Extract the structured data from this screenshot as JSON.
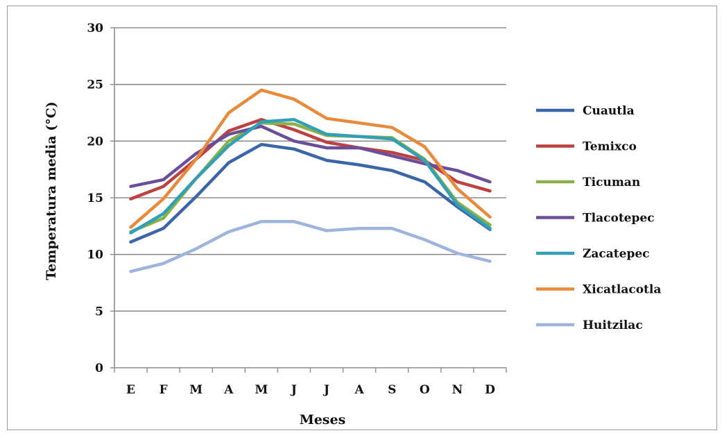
{
  "chart_data": {
    "type": "line",
    "title": "",
    "xlabel": "Meses",
    "ylabel": "Temperatura media (°C)",
    "categories": [
      "E",
      "F",
      "M",
      "A",
      "M",
      "J",
      "J",
      "A",
      "S",
      "O",
      "N",
      "D"
    ],
    "ylim": [
      0,
      30
    ],
    "yticks": [
      0,
      5,
      10,
      15,
      20,
      25,
      30
    ],
    "grid": true,
    "legend": "right",
    "series": [
      {
        "name": "Cuautla",
        "color": "#3a66a8",
        "values": [
          11.1,
          12.3,
          15.1,
          18.1,
          19.7,
          19.3,
          18.3,
          17.9,
          17.4,
          16.4,
          14.2,
          12.2
        ]
      },
      {
        "name": "Temixco",
        "color": "#bf4040",
        "values": [
          14.9,
          16.0,
          18.4,
          20.9,
          21.9,
          21.0,
          19.9,
          19.4,
          19.0,
          18.3,
          16.4,
          15.6
        ]
      },
      {
        "name": "Ticuman",
        "color": "#8bb04a",
        "values": [
          12.0,
          13.2,
          16.7,
          20.0,
          21.6,
          21.5,
          20.5,
          20.4,
          20.3,
          18.4,
          14.6,
          12.6
        ]
      },
      {
        "name": "Tlacotepec",
        "color": "#6b4e9a",
        "values": [
          16.0,
          16.6,
          18.9,
          20.6,
          21.3,
          20.0,
          19.4,
          19.4,
          18.7,
          18.0,
          17.4,
          16.4
        ]
      },
      {
        "name": "Zacatepec",
        "color": "#31a0b4",
        "values": [
          11.9,
          13.6,
          16.7,
          19.6,
          21.7,
          21.9,
          20.6,
          20.4,
          20.2,
          18.3,
          14.4,
          12.3
        ]
      },
      {
        "name": "Xicatlacotla",
        "color": "#e88a3c",
        "values": [
          12.4,
          14.9,
          18.4,
          22.5,
          24.5,
          23.7,
          22.0,
          21.6,
          21.2,
          19.5,
          15.8,
          13.3
        ]
      },
      {
        "name": "Huitzilac",
        "color": "#9eb4dc",
        "values": [
          8.5,
          9.2,
          10.5,
          12.0,
          12.9,
          12.9,
          12.1,
          12.3,
          12.3,
          11.3,
          10.1,
          9.4
        ]
      }
    ]
  }
}
